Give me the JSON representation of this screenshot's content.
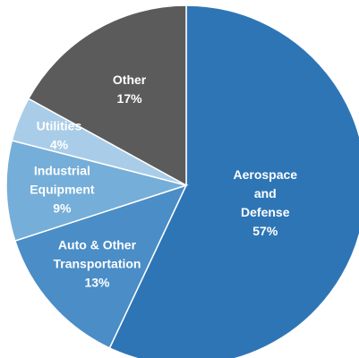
{
  "chart_data": {
    "type": "pie",
    "title": "",
    "slices": [
      {
        "label_lines": [
          "Aerospace",
          "and",
          "Defense"
        ],
        "value": 57,
        "value_label": "57%",
        "color": "#2E75B6"
      },
      {
        "label_lines": [
          "Auto & Other",
          "Transportation"
        ],
        "value": 13,
        "value_label": "13%",
        "color": "#4A8DC7"
      },
      {
        "label_lines": [
          "Industrial",
          "Equipment"
        ],
        "value": 9,
        "value_label": "9%",
        "color": "#75AED8"
      },
      {
        "label_lines": [
          "Utilities"
        ],
        "value": 4,
        "value_label": "4%",
        "color": "#A9CDE8"
      },
      {
        "label_lines": [
          "Other"
        ],
        "value": 17,
        "value_label": "17%",
        "color": "#5B5B5B"
      }
    ],
    "start_angle_deg": 0,
    "direction": "clockwise",
    "legend": "none",
    "data_labels": "inside"
  }
}
